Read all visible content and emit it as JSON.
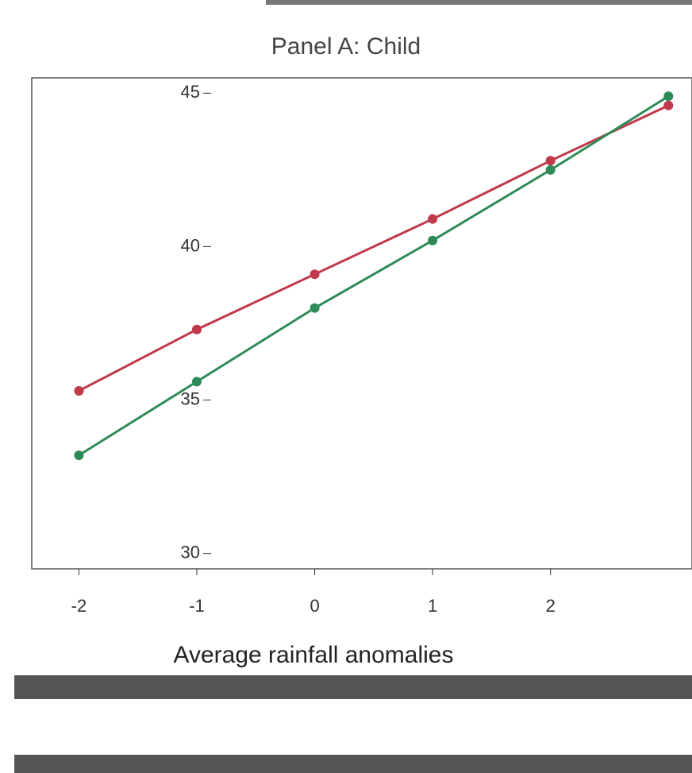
{
  "chart_data": {
    "type": "line",
    "title": "Panel A: Child",
    "x_label": "Average rainfall anomalies",
    "x": [
      -2,
      -1,
      0,
      1,
      2,
      3
    ],
    "series": [
      {
        "color": "#c0394b",
        "values": [
          35.3,
          37.3,
          39.1,
          40.9,
          42.8,
          44.6
        ]
      },
      {
        "color": "#2e8b57",
        "values": [
          33.2,
          35.6,
          38.0,
          40.2,
          42.5,
          44.9
        ]
      }
    ],
    "xlim": [
      -2.4,
      3.2
    ],
    "xticks": [
      -2,
      -1,
      0,
      1,
      2
    ],
    "ylim": [
      29.5,
      45.5
    ],
    "yticks": [
      30,
      35,
      40,
      45
    ],
    "grid": false
  }
}
